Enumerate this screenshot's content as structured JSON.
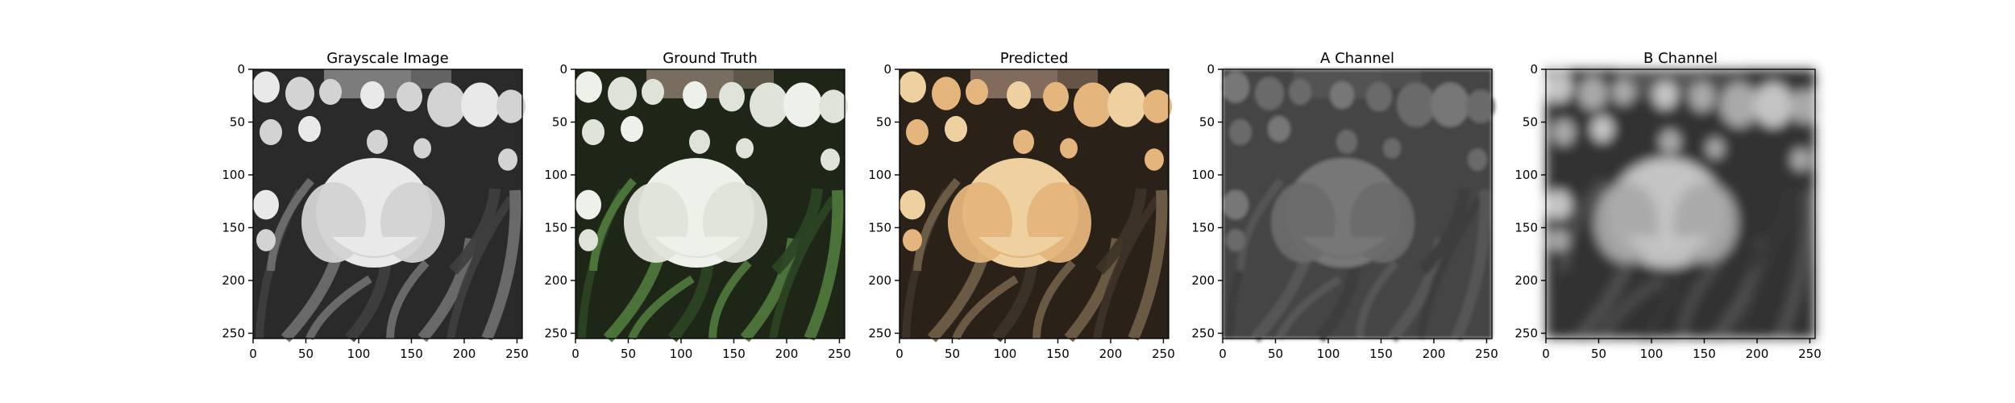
{
  "figure": {
    "panels": [
      {
        "id": "grayscale",
        "title": "Grayscale Image",
        "image_desc": "grayscale-tulip-field",
        "palette": {
          "background": "#2a2a2a",
          "foliage": "#6f6f6f",
          "foliage_dark": "#3f3f3f",
          "flower_main": "#e9e9e9",
          "flower_small": "#d3d3d3",
          "wall": "#8b8b8b"
        }
      },
      {
        "id": "ground-truth",
        "title": "Ground Truth",
        "image_desc": "white-tulips-green-stems",
        "palette": {
          "background": "#1e2618",
          "foliage": "#4f7a3d",
          "foliage_dark": "#2d4424",
          "flower_main": "#eef0ea",
          "flower_small": "#dfe3da",
          "wall": "#8a7a6c"
        }
      },
      {
        "id": "predicted",
        "title": "Predicted",
        "image_desc": "yellow-peach-tulips-muted-foliage",
        "palette": {
          "background": "#2a2118",
          "foliage": "#706048",
          "foliage_dark": "#3d3328",
          "flower_main": "#efd1a1",
          "flower_small": "#e4b57c",
          "wall": "#8f7868"
        }
      },
      {
        "id": "a-channel",
        "title": "A Channel",
        "image_desc": "blurred-a-channel-map",
        "palette": {
          "background": "#444444",
          "foliage": "#585858",
          "foliage_dark": "#3c3c3c",
          "flower_main": "#777777",
          "flower_small": "#6b6b6b",
          "wall": "#565656"
        }
      },
      {
        "id": "b-channel",
        "title": "B Channel",
        "image_desc": "blurred-b-channel-map",
        "palette": {
          "background": "#303030",
          "foliage": "#555555",
          "foliage_dark": "#373737",
          "flower_main": "#c4c4c4",
          "flower_small": "#a9a9a9",
          "wall": "#5d5d5d"
        }
      }
    ],
    "axes": {
      "x_ticks": [
        "0",
        "50",
        "100",
        "150",
        "200",
        "250"
      ],
      "y_ticks": [
        "0",
        "50",
        "100",
        "150",
        "200",
        "250"
      ]
    }
  }
}
